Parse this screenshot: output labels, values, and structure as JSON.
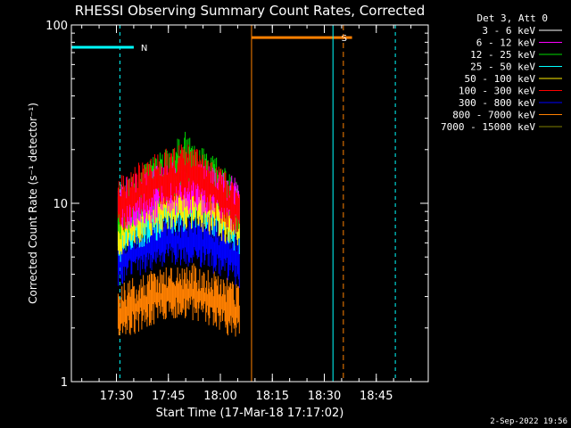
{
  "chart_data": {
    "type": "line",
    "title": "RHESSI Observing Summary Count Rates, Corrected",
    "xlabel": "Start Time (17-Mar-18 17:17:02)",
    "ylabel": "Corrected Count Rate (s⁻¹ detector⁻¹)",
    "y_scale": "log",
    "ylim": [
      1,
      100
    ],
    "y_ticks": [
      1,
      10,
      100
    ],
    "y_tick_labels": [
      "1",
      "10",
      "100"
    ],
    "x_unit": "minutes since 17:17:02",
    "xlim": [
      0,
      103
    ],
    "x_ticks": [
      13,
      28,
      43,
      58,
      73,
      88
    ],
    "x_tick_labels": [
      "17:30",
      "17:45",
      "18:00",
      "18:15",
      "18:30",
      "18:45"
    ],
    "legend_title": "Det 3, Att 0",
    "legend_position": "outside-right",
    "series": [
      {
        "name": "3 - 6 keV",
        "color": "#ffffff",
        "x": [],
        "y": []
      },
      {
        "name": "6 - 12 keV",
        "color": "#ff00ff",
        "x": [
          13.5,
          20,
          28,
          36,
          43,
          48.5
        ],
        "y": [
          12,
          13,
          15,
          16,
          14,
          12
        ]
      },
      {
        "name": "12 - 25 keV",
        "color": "#00dd00",
        "x": [
          13.5,
          20,
          28,
          33,
          36,
          43,
          48.5
        ],
        "y": [
          11,
          14,
          18,
          22,
          20,
          15,
          11
        ]
      },
      {
        "name": "25 - 50 keV",
        "color": "#00ffff",
        "x": [
          13.5,
          20,
          28,
          36,
          43,
          48.5
        ],
        "y": [
          8,
          10,
          12,
          13,
          11,
          9
        ]
      },
      {
        "name": "50 - 100 keV",
        "color": "#ffee00",
        "x": [
          13.5,
          20,
          28,
          36,
          43,
          48.5
        ],
        "y": [
          9,
          11,
          13,
          13,
          11,
          10
        ]
      },
      {
        "name": "100 - 300 keV",
        "color": "#ff0000",
        "x": [
          13.5,
          20,
          28,
          33,
          36,
          43,
          48.5
        ],
        "y": [
          12,
          15,
          18,
          19,
          18,
          14,
          11
        ]
      },
      {
        "name": "300 - 800 keV",
        "color": "#0000ff",
        "x": [
          13.5,
          20,
          28,
          36,
          43,
          48.5
        ],
        "y": [
          6,
          7,
          8,
          8,
          7,
          6
        ]
      },
      {
        "name": "800 - 7000 keV",
        "color": "#ff8000",
        "x": [
          13.5,
          20,
          28,
          36,
          43,
          48.5
        ],
        "y": [
          3,
          3.5,
          4,
          4,
          3.5,
          3
        ]
      },
      {
        "name": "7000 - 15000 keV",
        "color": "#808000",
        "x": [],
        "y": []
      }
    ],
    "annotations": [
      {
        "label": "N",
        "color": "#00ffff",
        "x_start": 0,
        "x_end": 18,
        "y": 75
      },
      {
        "label": "S",
        "color": "#ff8000",
        "x_start": 52,
        "x_end": 81,
        "y": 85
      }
    ],
    "footer": "2-Sep-2022 19:56"
  }
}
